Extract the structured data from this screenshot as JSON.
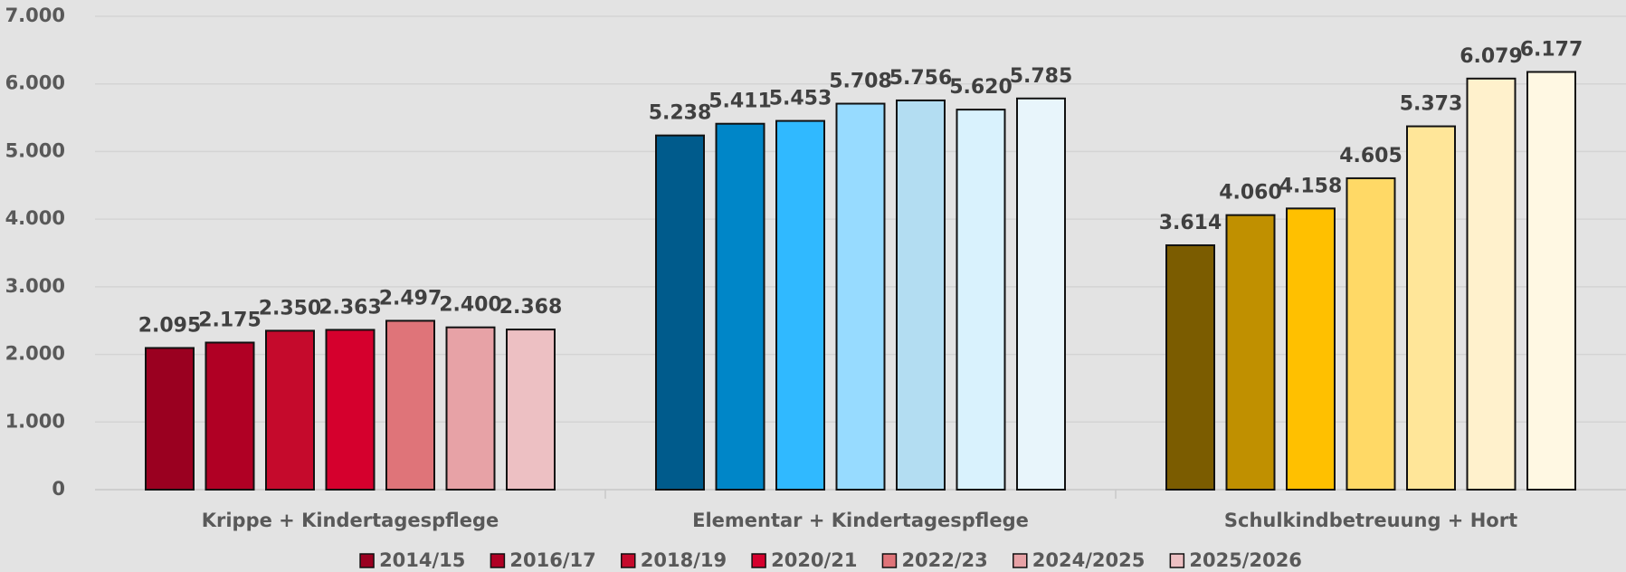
{
  "chart_data": {
    "type": "bar",
    "categories": [
      "Krippe + Kindertagespflege",
      "Elementar + Kindertagespflege",
      "Schulkindbetreuung + Hort"
    ],
    "series": [
      {
        "name": "2014/15",
        "colors": [
          "#9a0020",
          "#005b8c",
          "#7b5c00"
        ],
        "values": [
          2095,
          5238,
          3614
        ],
        "value_labels": [
          "2.095",
          "5.238",
          "3.614"
        ]
      },
      {
        "name": "2016/17",
        "colors": [
          "#b00024",
          "#0086c8",
          "#c09000"
        ],
        "values": [
          2175,
          5411,
          4060
        ],
        "value_labels": [
          "2.175",
          "5.411",
          "4.060"
        ]
      },
      {
        "name": "2018/19",
        "colors": [
          "#c50a2c",
          "#30b9ff",
          "#ffc000"
        ],
        "values": [
          2350,
          5453,
          4158
        ],
        "value_labels": [
          "2.350",
          "5.453",
          "4.158"
        ]
      },
      {
        "name": "2020/21",
        "colors": [
          "#d5002d",
          "#97dbff",
          "#ffd966"
        ],
        "values": [
          2363,
          5708,
          4605
        ],
        "value_labels": [
          "2.363",
          "5.708",
          "4.605"
        ]
      },
      {
        "name": "2022/23",
        "colors": [
          "#df7479",
          "#b3ddf2",
          "#ffe699"
        ],
        "values": [
          2497,
          5756,
          5373
        ],
        "value_labels": [
          "2.497",
          "5.756",
          "5.373"
        ]
      },
      {
        "name": "2024/2025",
        "colors": [
          "#e7a2a6",
          "#d9f2fd",
          "#fff1cc"
        ],
        "values": [
          2400,
          5620,
          6079
        ],
        "value_labels": [
          "2.400",
          "5.620",
          "6.079"
        ]
      },
      {
        "name": "2025/2026",
        "colors": [
          "#edc0c3",
          "#e8f5fb",
          "#fff8e3"
        ],
        "values": [
          2368,
          5785,
          6177
        ],
        "value_labels": [
          "2.368",
          "5.785",
          "6.177"
        ]
      }
    ],
    "ylim": [
      0,
      7000
    ],
    "yticks": [
      0,
      {
        "value": 1000,
        "label": "1.000"
      },
      {
        "value": 2000,
        "label": "2.000"
      },
      {
        "value": 3000,
        "label": "3.000"
      },
      {
        "value": 4000,
        "label": "4.000"
      },
      {
        "value": 5000,
        "label": "5.000"
      },
      {
        "value": 6000,
        "label": "6.000"
      },
      {
        "value": 7000,
        "label": "7.000"
      }
    ],
    "grid": true,
    "legend": "bottom"
  }
}
